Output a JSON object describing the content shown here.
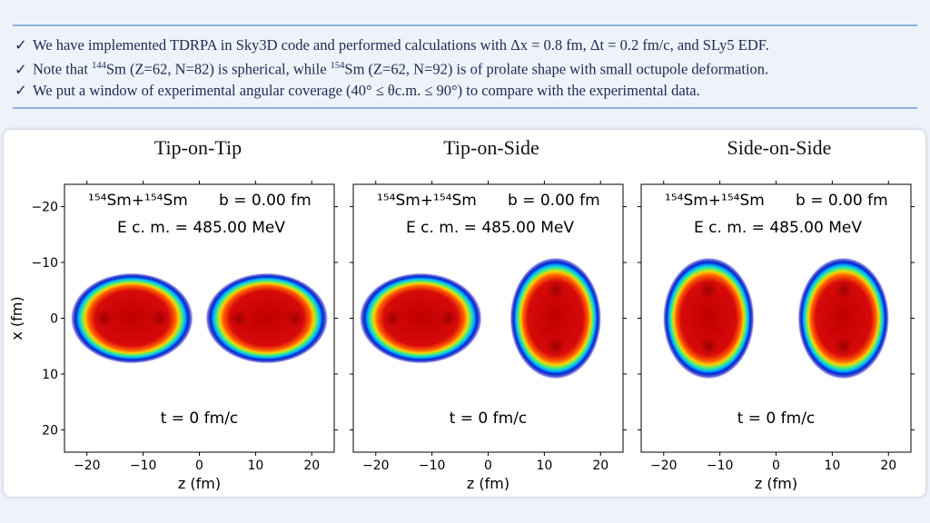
{
  "bullets": [
    {
      "check": "✓",
      "text": "We have implemented TDRPA in Sky3D code and performed calculations with Δx = 0.8 fm, Δt = 0.2 fm/c, and SLy5 EDF."
    },
    {
      "check": "✓",
      "pre": "Note that ",
      "sup1": "144",
      "mid": "Sm (Z=62, N=82) is spherical, while ",
      "sup2": "154",
      "post": "Sm (Z=62, N=92) is of prolate shape with small octupole deformation."
    },
    {
      "check": "✓",
      "text": "We put a window of experimental angular coverage (40° ≤ θc.m. ≤ 90°) to compare with the experimental data."
    }
  ],
  "panels": [
    {
      "title": "Tip-on-Tip"
    },
    {
      "title": "Tip-on-Side"
    },
    {
      "title": "Side-on-Side"
    }
  ],
  "plot": {
    "reaction": "¹⁵⁴Sm+¹⁵⁴Sm",
    "impact": "b = 0.00 fm",
    "energy": "E c. m. = 485.00 MeV",
    "time": "t = 0 fm/c",
    "xlabel": "z (fm)",
    "ylabel": "x (fm)",
    "xticks": [
      "−20",
      "−10",
      "0",
      "10",
      "20"
    ],
    "yticks": [
      "−20",
      "−10",
      "0",
      "10",
      "20"
    ]
  },
  "chart_data": [
    {
      "type": "heatmap",
      "title": "Tip-on-Tip",
      "xlabel": "z (fm)",
      "ylabel": "x (fm)",
      "xlim": [
        -24,
        24
      ],
      "ylim": [
        -24,
        24
      ],
      "nuclei": [
        {
          "z": -12,
          "x": 0,
          "orientation": "tip"
        },
        {
          "z": 12,
          "x": 0,
          "orientation": "tip"
        }
      ]
    },
    {
      "type": "heatmap",
      "title": "Tip-on-Side",
      "xlabel": "z (fm)",
      "ylabel": "x (fm)",
      "xlim": [
        -24,
        24
      ],
      "ylim": [
        -24,
        24
      ],
      "nuclei": [
        {
          "z": -12,
          "x": 0,
          "orientation": "tip"
        },
        {
          "z": 12,
          "x": 0,
          "orientation": "side"
        }
      ]
    },
    {
      "type": "heatmap",
      "title": "Side-on-Side",
      "xlabel": "z (fm)",
      "ylabel": "x (fm)",
      "xlim": [
        -24,
        24
      ],
      "ylim": [
        -24,
        24
      ],
      "nuclei": [
        {
          "z": -12,
          "x": 0,
          "orientation": "side"
        },
        {
          "z": 12,
          "x": 0,
          "orientation": "side"
        }
      ]
    }
  ]
}
